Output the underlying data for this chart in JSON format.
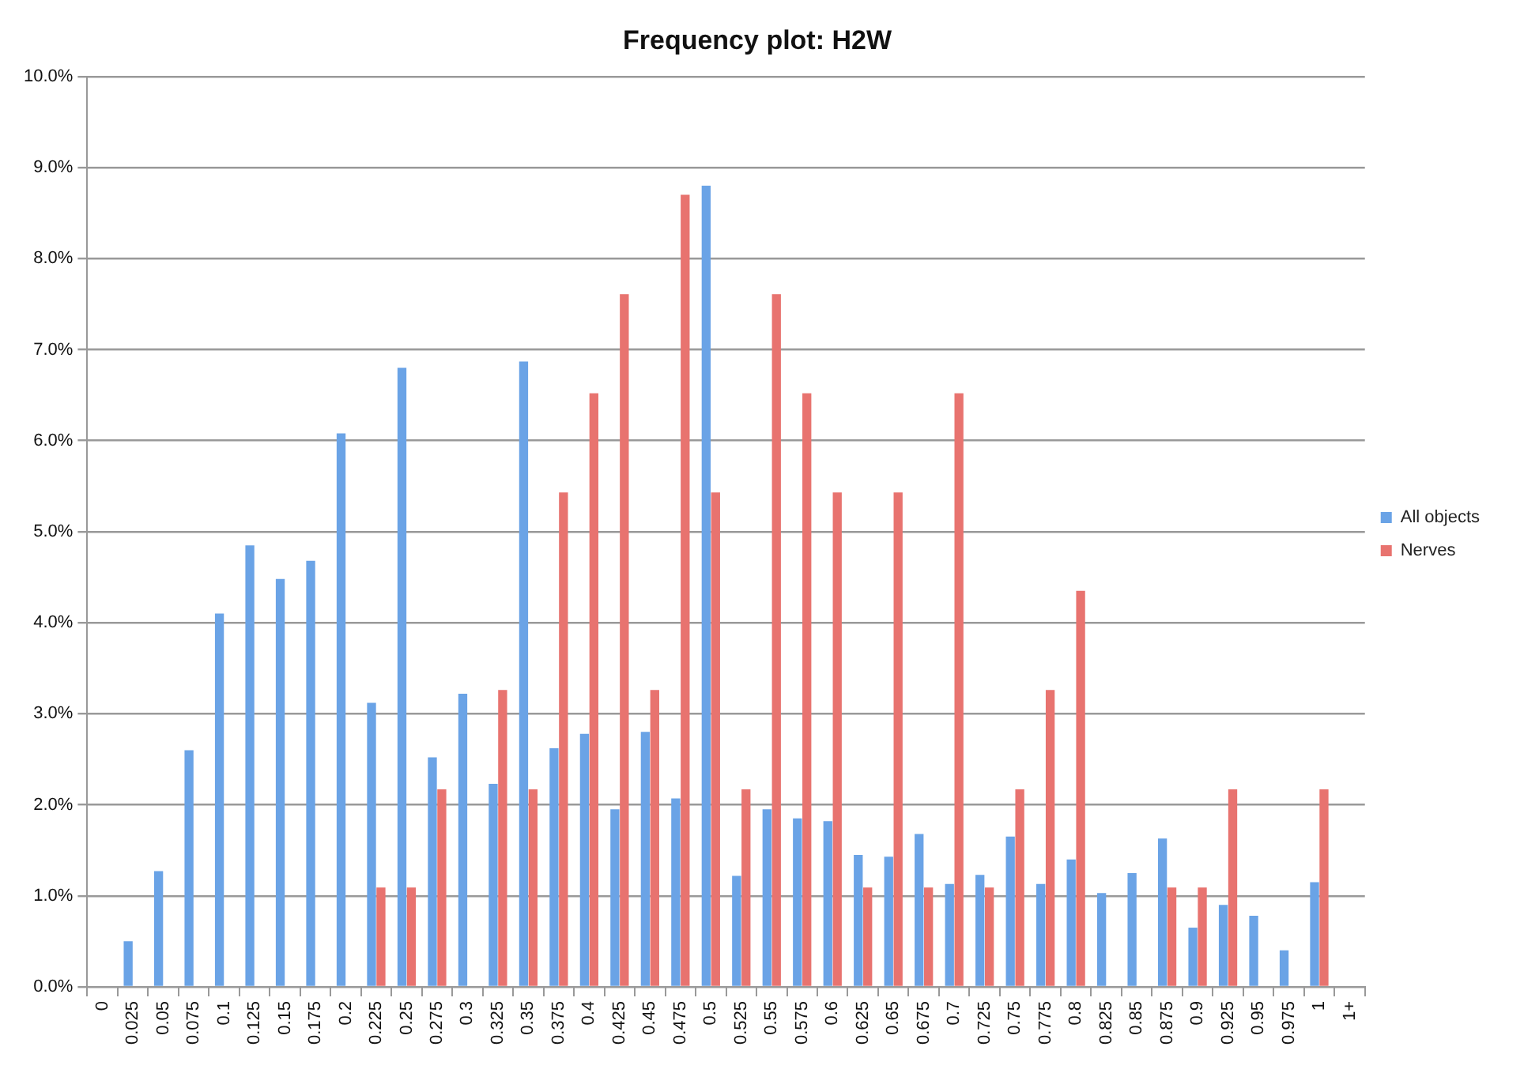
{
  "chart_data": {
    "type": "bar",
    "title": "Frequency plot: H2W",
    "categories": [
      "0",
      "0.025",
      "0.05",
      "0.075",
      "0.1",
      "0.125",
      "0.15",
      "0.175",
      "0.2",
      "0.225",
      "0.25",
      "0.275",
      "0.3",
      "0.325",
      "0.35",
      "0.375",
      "0.4",
      "0.425",
      "0.45",
      "0.475",
      "0.5",
      "0.525",
      "0.55",
      "0.575",
      "0.6",
      "0.625",
      "0.65",
      "0.675",
      "0.7",
      "0.725",
      "0.75",
      "0.775",
      "0.8",
      "0.825",
      "0.85",
      "0.875",
      "0.9",
      "0.925",
      "0.95",
      "0.975",
      "1",
      "1+"
    ],
    "series": [
      {
        "name": "All objects",
        "color": "#6aa3e6",
        "values": [
          0,
          0.5,
          1.27,
          2.6,
          4.1,
          4.85,
          4.48,
          4.68,
          6.08,
          3.12,
          6.8,
          2.52,
          3.22,
          2.23,
          6.87,
          2.62,
          2.78,
          1.95,
          2.8,
          2.07,
          8.8,
          1.22,
          1.95,
          1.85,
          1.82,
          1.45,
          1.43,
          1.68,
          1.13,
          1.23,
          1.65,
          1.13,
          1.4,
          1.03,
          1.25,
          1.63,
          0.65,
          0.9,
          0.78,
          0.4,
          1.15,
          0
        ]
      },
      {
        "name": "Nerves",
        "color": "#e8736f",
        "values": [
          0,
          0,
          0,
          0,
          0,
          0,
          0,
          0,
          0,
          1.09,
          1.09,
          2.17,
          0,
          3.26,
          2.17,
          5.43,
          6.52,
          7.61,
          3.26,
          8.7,
          5.43,
          2.17,
          7.61,
          6.52,
          5.43,
          1.09,
          5.43,
          1.09,
          6.52,
          1.09,
          2.17,
          3.26,
          4.35,
          0,
          0,
          1.09,
          1.09,
          2.17,
          0,
          0,
          2.17,
          0
        ]
      }
    ],
    "ylim": [
      0,
      10
    ],
    "yticks": [
      {
        "value": 0,
        "label": "0.0%"
      },
      {
        "value": 1,
        "label": "1.0%"
      },
      {
        "value": 2,
        "label": "2.0%"
      },
      {
        "value": 3,
        "label": "3.0%"
      },
      {
        "value": 4,
        "label": "4.0%"
      },
      {
        "value": 5,
        "label": "5.0%"
      },
      {
        "value": 6,
        "label": "6.0%"
      },
      {
        "value": 7,
        "label": "7.0%"
      },
      {
        "value": 8,
        "label": "8.0%"
      },
      {
        "value": 9,
        "label": "9.0%"
      },
      {
        "value": 10,
        "label": "10.0%"
      }
    ],
    "grid": "y",
    "legend": "right"
  }
}
